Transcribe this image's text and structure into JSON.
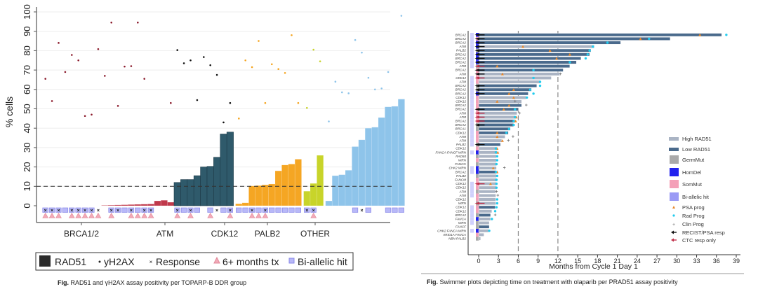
{
  "chart_data": [
    {
      "type": "bar",
      "title": "",
      "caption_prefix": "Fig.",
      "caption": "RAD51 and γH2AX  assay positivity per TOPARP-B  DDR group",
      "ylabel": "% cells",
      "xlabel": "",
      "ylim": [
        -9,
        100
      ],
      "yticks": [
        0,
        10,
        20,
        30,
        40,
        50,
        60,
        70,
        80,
        90,
        100
      ],
      "threshold": 10,
      "grid": true,
      "legend_position": "bottom",
      "groups": [
        {
          "name": "BRCA1/2",
          "color": "#c0394b",
          "rad51": [
            0,
            0,
            0,
            0,
            0,
            0,
            0,
            0,
            0,
            0.2,
            0.3,
            0.4,
            0.5,
            0.6,
            0.7,
            0.8,
            0.9,
            2.5,
            2.8,
            1.8
          ],
          "yh2ax": [
            65.5,
            54,
            84,
            69,
            77.8,
            75,
            46.3,
            47,
            80.8,
            67,
            94.5,
            51.5,
            71.8,
            72,
            94.5,
            65.5,
            null,
            null,
            null,
            53
          ],
          "response": [
            1,
            1,
            1,
            0,
            1,
            1,
            1,
            1,
            1,
            0,
            1,
            1,
            0,
            1,
            0,
            1,
            1,
            0,
            0,
            0
          ],
          "six_months": [
            1,
            1,
            1,
            0,
            1,
            1,
            1,
            1,
            1,
            0,
            1,
            0,
            0,
            1,
            1,
            1,
            1,
            0,
            0,
            0
          ],
          "biallelic": [
            1,
            1,
            1,
            1,
            1,
            1,
            1,
            1,
            0,
            0,
            1,
            1,
            1,
            1,
            1,
            1,
            1,
            0,
            0,
            0
          ]
        },
        {
          "name": "ATM",
          "color": "#2f5a6b",
          "rad51": [
            12,
            13.5,
            13.5,
            15.5,
            20,
            20.3,
            25,
            37,
            38
          ],
          "yh2ax": [
            80.3,
            73.5,
            75,
            54.5,
            76.7,
            72.5,
            67.5,
            43,
            53
          ],
          "response": [
            1,
            0,
            1,
            0,
            0,
            0,
            1,
            0,
            1
          ],
          "six_months": [
            1,
            0,
            1,
            0,
            0,
            1,
            0,
            0,
            1
          ],
          "biallelic": [
            1,
            1,
            1,
            1,
            0,
            1,
            0,
            1,
            1
          ]
        },
        {
          "name": "CDK12",
          "color": "#f5a623",
          "rad51": [
            1,
            1.5,
            10.2,
            10.4,
            10.8,
            11.2,
            18,
            21,
            21.5,
            24
          ],
          "yh2ax": [
            45,
            75,
            71.5,
            85,
            53,
            73,
            70.5,
            68.5,
            88,
            53
          ],
          "response": [
            0,
            0,
            1,
            0,
            1,
            0,
            0,
            0,
            0,
            0
          ],
          "six_months": [
            0,
            0,
            1,
            1,
            1,
            0,
            0,
            0,
            0,
            0
          ],
          "biallelic": [
            1,
            1,
            1,
            1,
            1,
            1,
            1,
            1,
            1,
            1
          ]
        },
        {
          "name": "PALB2",
          "color": "#c8d42a",
          "rad51": [
            7.5,
            11.5,
            26
          ],
          "yh2ax": [
            50.5,
            80.5,
            74.5
          ],
          "response": [
            1,
            1,
            0
          ],
          "six_months": [
            0,
            1,
            0
          ],
          "biallelic": [
            1,
            1,
            0
          ]
        },
        {
          "name": "OTHER",
          "color": "#8ec4ea",
          "rad51": [
            2.5,
            15.5,
            16,
            18.3,
            30.5,
            34,
            40,
            40.5,
            45.5,
            51,
            51.3,
            55
          ],
          "yh2ax": [
            43.5,
            64,
            58.5,
            58,
            85.5,
            79,
            66,
            60,
            60.5,
            69,
            null,
            98
          ],
          "response": [
            0,
            0,
            0,
            0,
            0,
            1,
            0,
            0,
            0,
            0,
            0,
            0
          ],
          "six_months": [
            0,
            0,
            0,
            0,
            0,
            0,
            0,
            0,
            0,
            0,
            0,
            0
          ],
          "biallelic": [
            0,
            0,
            0,
            0,
            1,
            0,
            1,
            0,
            0,
            1,
            1,
            1
          ]
        }
      ],
      "legend": [
        {
          "key": "rad51",
          "label": "RAD51",
          "symbol": "square-dark"
        },
        {
          "key": "yh2ax",
          "label": "yH2AX",
          "symbol": "dot"
        },
        {
          "key": "response",
          "label": "Response",
          "symbol": "x"
        },
        {
          "key": "six_months",
          "label": "6+ months tx",
          "symbol": "triangle-pink"
        },
        {
          "key": "biallelic",
          "label": "Bi-allelic hit",
          "symbol": "square-lavender"
        }
      ],
      "colors": {
        "six_months": "#e8a0b0",
        "biallelic": "#9a9af0",
        "marker": "#111111"
      }
    },
    {
      "type": "bar",
      "subtype": "swimmer",
      "caption_prefix": "Fig.",
      "caption": "Swimmer plots depicting time on treatment with olaparib per PRAD51 assay positivity",
      "xlabel": "Months from Cycle 1 Day 1",
      "xlim": [
        -1.5,
        39.5
      ],
      "xticks": [
        0,
        3,
        6,
        9,
        12,
        15,
        18,
        21,
        24,
        27,
        30,
        33,
        36,
        39
      ],
      "reference_lines": [
        6,
        12
      ],
      "legend_position": "right",
      "legend": [
        {
          "key": "high",
          "label": "High RAD51",
          "color": "#aab4c4",
          "symbol": "bar"
        },
        {
          "key": "low",
          "label": "Low RAD51",
          "color": "#4a6a8c",
          "symbol": "bar"
        },
        {
          "key": "germ",
          "label": "GermMut",
          "color": "#aaaaaa",
          "symbol": "square"
        },
        {
          "key": "homdel",
          "label": "HomDel",
          "color": "#2222ee",
          "symbol": "square"
        },
        {
          "key": "som",
          "label": "SomMut",
          "color": "#f4a0b8",
          "symbol": "square"
        },
        {
          "key": "bi",
          "label": "Bi-allelic hit",
          "color": "#9a9af5",
          "symbol": "square"
        },
        {
          "key": "psa",
          "label": "PSA prog",
          "color": "#e8892a",
          "symbol": "triangle"
        },
        {
          "key": "rad",
          "label": "Rad Prog",
          "color": "#22ccee",
          "symbol": "dot"
        },
        {
          "key": "clin",
          "label": "Clin Prog",
          "color": "#777777",
          "symbol": "plus"
        },
        {
          "key": "recist",
          "label": "RECIST/PSA resp",
          "color": "#111111",
          "symbol": "arrow"
        },
        {
          "key": "ctc",
          "label": "CTC resp only",
          "color": "#c0304a",
          "symbol": "arrow"
        }
      ],
      "rows": [
        {
          "gene": "BRCA2",
          "months": 36.8,
          "rad51": "low",
          "mut": "homdel",
          "bi": true,
          "resp": "recist",
          "psa": 33.5,
          "rad": 37.5
        },
        {
          "gene": "BRCA2",
          "months": 29,
          "rad51": "low",
          "mut": "som",
          "bi": true,
          "resp": "recist",
          "psa": 24.5,
          "rad": 25.8
        },
        {
          "gene": "BRCA2",
          "months": 21.5,
          "rad51": "low",
          "mut": "homdel",
          "bi": true,
          "resp": "recist",
          "rad": 19.5
        },
        {
          "gene": "ATM",
          "months": 17.5,
          "rad51": "high",
          "mut": "homdel",
          "bi": true,
          "resp": "recist",
          "psa": 6.7,
          "rad": 17.3
        },
        {
          "gene": "PALB2",
          "months": 17,
          "rad51": "low",
          "mut": "germ",
          "bi": true,
          "resp": "recist",
          "psa": 10.8,
          "rad": 16.8
        },
        {
          "gene": "BRCA2",
          "months": 16.8,
          "rad51": "low",
          "mut": "homdel",
          "bi": true,
          "resp": "recist",
          "psa": 13.8,
          "rad": 16.5
        },
        {
          "gene": "BRCA2",
          "months": 15.5,
          "rad51": "low",
          "mut": "homdel",
          "bi": true,
          "resp": "recist",
          "psa": 11.8,
          "rad": 16.2
        },
        {
          "gene": "BRCA2",
          "months": 14.8,
          "rad51": "low",
          "mut": "homdel",
          "bi": true,
          "resp": "recist",
          "rad": 13.8
        },
        {
          "gene": "ATM",
          "months": 13.8,
          "rad51": "low",
          "mut": "germ",
          "bi": true,
          "resp": "ctc",
          "psa": 2.8
        },
        {
          "gene": "BRCA2",
          "months": 12.8,
          "rad51": "low",
          "mut": "som",
          "bi": false,
          "resp": "recist",
          "rad": 8.3
        },
        {
          "gene": "ATM",
          "months": 12.3,
          "rad51": "high",
          "mut": "som",
          "bi": false,
          "resp": "recist",
          "psa": 3.6,
          "clin": 12.4
        },
        {
          "gene": "CDK12",
          "months": 11,
          "rad51": "high",
          "mut": "som",
          "bi": true,
          "resp": "ctc",
          "rad": 8.3
        },
        {
          "gene": "ATM",
          "months": 9.3,
          "rad51": "high",
          "mut": "som",
          "bi": true,
          "rad": 9.3
        },
        {
          "gene": "BRCA2",
          "months": 8.8,
          "rad51": "low",
          "mut": "germ",
          "bi": true,
          "resp": "recist",
          "rad": 9.3
        },
        {
          "gene": "BRCA2",
          "months": 8,
          "rad51": "low",
          "mut": "germ",
          "bi": true,
          "resp": "recist",
          "psa": 5.3,
          "rad": 7.8
        },
        {
          "gene": "BRCA2",
          "months": 7.5,
          "rad51": "low",
          "mut": "homdel",
          "bi": true,
          "resp": "recist",
          "psa": 4.6,
          "rad": 8.3
        },
        {
          "gene": "CDK12",
          "months": 7.2,
          "rad51": "high",
          "mut": "som",
          "bi": true,
          "psa": 5.3,
          "rad": 7.3
        },
        {
          "gene": "CDK12",
          "months": 6.5,
          "rad51": "high",
          "mut": "som",
          "bi": true,
          "psa": 2.8,
          "clin": 5.5
        },
        {
          "gene": "BRCA2",
          "months": 6.5,
          "rad51": "low",
          "mut": "som",
          "bi": true,
          "psa": 4.6,
          "clin": 7.2
        },
        {
          "gene": "BRCA2",
          "months": 6,
          "rad51": "low",
          "mut": "som",
          "bi": true,
          "resp": "recist",
          "psa": 3.8,
          "rad": 5.5
        },
        {
          "gene": "ATM",
          "months": 5.8,
          "rad51": "high",
          "mut": "som",
          "bi": true,
          "resp": "ctc",
          "clin": 6.2
        },
        {
          "gene": "ATM",
          "months": 5.6,
          "rad51": "high",
          "mut": "som",
          "bi": true,
          "resp": "ctc",
          "psa": 5.7,
          "rad": 5.5
        },
        {
          "gene": "BRCA2",
          "months": 5.5,
          "rad51": "low",
          "mut": "som",
          "bi": true,
          "resp": "ctc",
          "rad": 5.3,
          "psa": 5.6
        },
        {
          "gene": "BRCA2",
          "months": 5.3,
          "rad51": "low",
          "mut": "germ",
          "bi": true,
          "resp": "recist",
          "rad": 5.3
        },
        {
          "gene": "BRCA1",
          "months": 4.8,
          "rad51": "low",
          "mut": "germ",
          "bi": true,
          "rad": 4.6
        },
        {
          "gene": "CDK12",
          "months": 4.5,
          "rad51": "low",
          "mut": "som",
          "bi": true,
          "psa": 2.8,
          "rad": 4.2
        },
        {
          "gene": "ATM",
          "months": 4,
          "rad51": "high",
          "mut": "som",
          "bi": true,
          "psa": 2.8,
          "clin": 5.2
        },
        {
          "gene": "ATM",
          "months": 3.5,
          "rad51": "high",
          "mut": "som",
          "bi": true,
          "psa": 3.6,
          "clin": 4.5
        },
        {
          "gene": "PALB2",
          "months": 3.3,
          "rad51": "low",
          "mut": "germ",
          "bi": true,
          "resp": "recist"
        },
        {
          "gene": "CDK12",
          "months": 2.8,
          "rad51": "high",
          "mut": "som",
          "bi": false,
          "psa": 2.8,
          "rad": 2.6
        },
        {
          "gene": "FANCA FANCF WRN",
          "months": 2.8,
          "rad51": "high",
          "mut": "homdel",
          "bi": true,
          "psa": 2.9,
          "rad": 2.6
        },
        {
          "gene": "RAD50",
          "months": 2.7,
          "rad51": "high",
          "mut": "germ",
          "bi": false,
          "rad": 2.8
        },
        {
          "gene": "WRN",
          "months": 2.7,
          "rad51": "high",
          "mut": "som",
          "bi": false,
          "rad": 2.8
        },
        {
          "gene": "FANCG",
          "months": 2.7,
          "rad51": "high",
          "mut": "germ",
          "bi": false,
          "rad": 2.7
        },
        {
          "gene": "CHK2 WRN",
          "months": 2.7,
          "rad51": "high",
          "mut": "homdel",
          "bi": true,
          "psa": 2.2,
          "clin": 3.9
        },
        {
          "gene": "BRCA2",
          "months": 2.7,
          "rad51": "low",
          "mut": "homdel",
          "bi": true,
          "psa": 2.8,
          "rad": 2.6
        },
        {
          "gene": "PALB2",
          "months": 2.7,
          "rad51": "high",
          "mut": "germ",
          "bi": false,
          "rad": 2.8
        },
        {
          "gene": "FANCM",
          "months": 2.7,
          "rad51": "high",
          "mut": "som",
          "bi": false,
          "rad": 2.7
        },
        {
          "gene": "CDK12",
          "months": 2.7,
          "rad51": "high",
          "mut": "som",
          "bi": true,
          "resp": "ctc",
          "psa": 1.8,
          "rad": 2.7
        },
        {
          "gene": "CDK12",
          "months": 2.7,
          "rad51": "high",
          "mut": "som",
          "bi": true,
          "rad": 2.7
        },
        {
          "gene": "ATM",
          "months": 2.6,
          "rad51": "high",
          "mut": "germ",
          "bi": true,
          "clin": 2.7
        },
        {
          "gene": "ATM",
          "months": 2.6,
          "rad51": "high",
          "mut": "som",
          "bi": true,
          "clin": 2.9
        },
        {
          "gene": "CDK12",
          "months": 2.6,
          "rad51": "high",
          "mut": "som",
          "bi": false,
          "rad": 2.8
        },
        {
          "gene": "WRN",
          "months": 2.6,
          "rad51": "high",
          "mut": "germ",
          "bi": false,
          "resp": "ctc",
          "rad": 2.8
        },
        {
          "gene": "CDK12",
          "months": 2.5,
          "rad51": "low",
          "mut": "som",
          "bi": true,
          "rad": 2.7
        },
        {
          "gene": "CDK12",
          "months": 2.0,
          "rad51": "high",
          "mut": "som",
          "bi": true,
          "rad": 2.5
        },
        {
          "gene": "BRCA2",
          "months": 1.8,
          "rad51": "low",
          "mut": "germ",
          "bi": true,
          "clin": 2.5
        },
        {
          "gene": "FANCA",
          "months": 1.8,
          "rad51": "high",
          "mut": "homdel",
          "bi": true,
          "rad": 2.0
        },
        {
          "gene": "WRN",
          "months": 1.6,
          "rad51": "high",
          "mut": "germ",
          "bi": true
        },
        {
          "gene": "FANCF",
          "months": 1.6,
          "rad51": "low",
          "mut": "germ",
          "bi": false
        },
        {
          "gene": "CHK2 FANCA WRN",
          "months": 1.5,
          "rad51": "high",
          "mut": "homdel",
          "bi": true,
          "rad": 1.6
        },
        {
          "gene": "ARID1A FANCA",
          "months": 0.8,
          "rad51": "high",
          "mut": "som",
          "bi": false
        },
        {
          "gene": "NBN PALB2",
          "months": 0.3,
          "rad51": "high",
          "mut": "germ",
          "bi": false
        }
      ]
    }
  ]
}
